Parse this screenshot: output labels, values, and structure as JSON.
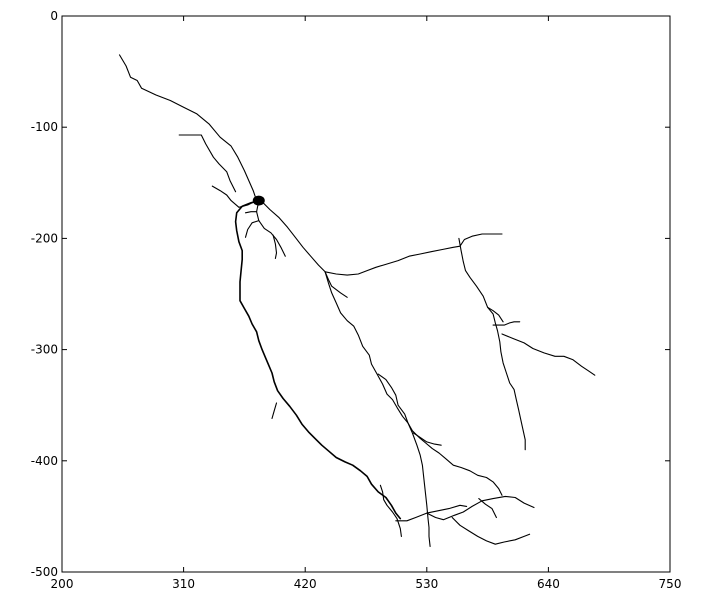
{
  "chart_data": {
    "type": "line",
    "title": "",
    "xlabel": "",
    "ylabel": "",
    "xlim": [
      200,
      750
    ],
    "ylim": [
      -500,
      0
    ],
    "xticks": [
      200,
      310,
      420,
      530,
      640,
      750
    ],
    "yticks": [
      0,
      -100,
      -200,
      -300,
      -400,
      -500
    ],
    "grid": false,
    "legend": "none",
    "soma": {
      "x": 378,
      "y": -166
    },
    "series": [
      {
        "points": [
          [
            252,
            -35
          ],
          [
            258,
            -45
          ],
          [
            262,
            -55
          ],
          [
            268,
            -58
          ],
          [
            272,
            -65
          ],
          [
            285,
            -71
          ],
          [
            298,
            -76
          ],
          [
            310,
            -82
          ],
          [
            322,
            -88
          ],
          [
            333,
            -97
          ],
          [
            343,
            -109
          ],
          [
            353,
            -117
          ],
          [
            359,
            -127
          ],
          [
            365,
            -139
          ],
          [
            369,
            -148
          ],
          [
            373,
            -157
          ],
          [
            376,
            -166
          ]
        ]
      },
      {
        "points": [
          [
            306,
            -107
          ],
          [
            316,
            -107
          ],
          [
            326,
            -107
          ],
          [
            330,
            -115
          ],
          [
            337,
            -127
          ],
          [
            342,
            -133
          ],
          [
            349,
            -140
          ],
          [
            352,
            -148
          ],
          [
            357,
            -158
          ]
        ]
      },
      {
        "points": [
          [
            336,
            -153
          ],
          [
            343,
            -157
          ],
          [
            349,
            -161
          ],
          [
            353,
            -166
          ],
          [
            360,
            -172
          ],
          [
            368,
            -170
          ],
          [
            376,
            -166
          ]
        ]
      },
      {
        "points": [
          [
            376,
            -166
          ],
          [
            381,
            -167
          ],
          [
            388,
            -174
          ],
          [
            396,
            -181
          ],
          [
            404,
            -190
          ],
          [
            411,
            -199
          ],
          [
            418,
            -208
          ],
          [
            425,
            -216
          ],
          [
            432,
            -224
          ],
          [
            438,
            -230
          ]
        ]
      },
      {
        "points": [
          [
            438,
            -230
          ],
          [
            441,
            -237
          ],
          [
            444,
            -243
          ],
          [
            452,
            -249
          ],
          [
            458,
            -253
          ]
        ]
      },
      {
        "points": [
          [
            438,
            -230
          ],
          [
            448,
            -232
          ],
          [
            458,
            -233
          ],
          [
            468,
            -232
          ],
          [
            476,
            -229
          ],
          [
            484,
            -226
          ],
          [
            494,
            -223
          ],
          [
            504,
            -220
          ],
          [
            514,
            -216
          ],
          [
            524,
            -214
          ],
          [
            534,
            -212
          ],
          [
            544,
            -210
          ],
          [
            554,
            -208
          ],
          [
            560,
            -207
          ],
          [
            564,
            -201
          ],
          [
            571,
            -198
          ],
          [
            580,
            -196
          ],
          [
            588,
            -196
          ],
          [
            594,
            -196
          ],
          [
            598,
            -196
          ]
        ]
      },
      {
        "points": [
          [
            559,
            -200
          ],
          [
            561,
            -211
          ],
          [
            563,
            -221
          ],
          [
            565,
            -229
          ],
          [
            569,
            -235
          ],
          [
            575,
            -243
          ],
          [
            581,
            -252
          ],
          [
            585,
            -262
          ],
          [
            590,
            -265
          ],
          [
            595,
            -269
          ],
          [
            599,
            -275
          ]
        ]
      },
      {
        "points": [
          [
            585,
            -262
          ],
          [
            590,
            -268
          ],
          [
            592,
            -276
          ],
          [
            594,
            -283
          ],
          [
            596,
            -293
          ],
          [
            597,
            -302
          ],
          [
            599,
            -312
          ],
          [
            602,
            -321
          ],
          [
            605,
            -330
          ],
          [
            609,
            -336
          ],
          [
            611,
            -345
          ],
          [
            613,
            -354
          ],
          [
            615,
            -363
          ],
          [
            617,
            -372
          ],
          [
            619,
            -381
          ],
          [
            619,
            -390
          ]
        ]
      },
      {
        "points": [
          [
            590,
            -278
          ],
          [
            600,
            -278
          ],
          [
            605,
            -276
          ],
          [
            609,
            -275
          ],
          [
            614,
            -275
          ]
        ]
      },
      {
        "points": [
          [
            598,
            -286
          ],
          [
            608,
            -290
          ],
          [
            618,
            -294
          ],
          [
            626,
            -299
          ],
          [
            636,
            -303
          ],
          [
            646,
            -306
          ],
          [
            654,
            -306
          ],
          [
            662,
            -309
          ],
          [
            670,
            -315
          ],
          [
            676,
            -319
          ],
          [
            682,
            -323
          ]
        ]
      },
      {
        "points": [
          [
            438,
            -230
          ],
          [
            441,
            -240
          ],
          [
            444,
            -249
          ],
          [
            448,
            -258
          ],
          [
            452,
            -267
          ],
          [
            458,
            -274
          ],
          [
            464,
            -279
          ],
          [
            468,
            -287
          ],
          [
            472,
            -297
          ],
          [
            478,
            -305
          ],
          [
            480,
            -313
          ],
          [
            485,
            -322
          ],
          [
            490,
            -331
          ],
          [
            494,
            -340
          ],
          [
            499,
            -345
          ],
          [
            503,
            -352
          ],
          [
            508,
            -360
          ],
          [
            513,
            -366
          ],
          [
            517,
            -373
          ],
          [
            523,
            -379
          ],
          [
            529,
            -384
          ],
          [
            535,
            -389
          ],
          [
            541,
            -393
          ],
          [
            547,
            -398
          ],
          [
            554,
            -404
          ],
          [
            561,
            -406
          ],
          [
            569,
            -409
          ],
          [
            576,
            -413
          ],
          [
            584,
            -415
          ],
          [
            590,
            -419
          ],
          [
            595,
            -425
          ],
          [
            598,
            -431
          ]
        ]
      },
      {
        "points": [
          [
            518,
            -375
          ],
          [
            524,
            -379
          ],
          [
            530,
            -383
          ],
          [
            537,
            -385
          ],
          [
            543,
            -386
          ]
        ]
      },
      {
        "points": [
          [
            378,
            -166
          ],
          [
            371,
            -168
          ],
          [
            363,
            -171
          ],
          [
            358,
            -177
          ],
          [
            357,
            -185
          ],
          [
            358,
            -193
          ],
          [
            360,
            -203
          ],
          [
            363,
            -211
          ],
          [
            363,
            -219
          ],
          [
            362,
            -229
          ],
          [
            361,
            -239
          ],
          [
            361,
            -249
          ],
          [
            361,
            -256
          ],
          [
            365,
            -263
          ],
          [
            369,
            -270
          ],
          [
            372,
            -277
          ],
          [
            376,
            -284
          ],
          [
            378,
            -292
          ],
          [
            381,
            -300
          ],
          [
            384,
            -307
          ],
          [
            387,
            -314
          ],
          [
            390,
            -321
          ],
          [
            392,
            -329
          ],
          [
            395,
            -337
          ],
          [
            400,
            -344
          ],
          [
            406,
            -351
          ],
          [
            412,
            -359
          ],
          [
            417,
            -367
          ],
          [
            423,
            -374
          ],
          [
            429,
            -380
          ],
          [
            435,
            -386
          ],
          [
            441,
            -391
          ],
          [
            448,
            -397
          ],
          [
            456,
            -401
          ],
          [
            463,
            -404
          ],
          [
            470,
            -409
          ],
          [
            476,
            -414
          ],
          [
            480,
            -421
          ],
          [
            486,
            -428
          ],
          [
            493,
            -433
          ],
          [
            498,
            -440
          ],
          [
            502,
            -447
          ],
          [
            506,
            -452
          ]
        ]
      },
      {
        "points": [
          [
            394,
            -348
          ],
          [
            392,
            -355
          ],
          [
            390,
            -362
          ]
        ]
      },
      {
        "points": [
          [
            488,
            -422
          ],
          [
            490,
            -428
          ],
          [
            491,
            -435
          ],
          [
            494,
            -440
          ],
          [
            499,
            -446
          ],
          [
            503,
            -452
          ],
          [
            506,
            -461
          ],
          [
            507,
            -468
          ]
        ]
      },
      {
        "points": [
          [
            502,
            -454
          ],
          [
            512,
            -454
          ],
          [
            520,
            -451
          ],
          [
            530,
            -447
          ],
          [
            540,
            -445
          ],
          [
            550,
            -443
          ],
          [
            560,
            -440
          ],
          [
            566,
            -441
          ]
        ]
      },
      {
        "points": [
          [
            486,
            -322
          ],
          [
            493,
            -327
          ],
          [
            498,
            -334
          ],
          [
            502,
            -341
          ],
          [
            504,
            -350
          ],
          [
            510,
            -358
          ],
          [
            513,
            -366
          ],
          [
            517,
            -375
          ],
          [
            521,
            -386
          ],
          [
            524,
            -395
          ],
          [
            526,
            -404
          ],
          [
            527,
            -413
          ],
          [
            528,
            -422
          ],
          [
            529,
            -431
          ],
          [
            530,
            -440
          ],
          [
            531,
            -451
          ],
          [
            532,
            -460
          ],
          [
            532,
            -468
          ],
          [
            533,
            -477
          ]
        ]
      },
      {
        "points": [
          [
            530,
            -447
          ],
          [
            538,
            -451
          ],
          [
            545,
            -453
          ],
          [
            555,
            -449
          ],
          [
            563,
            -446
          ],
          [
            571,
            -441
          ],
          [
            580,
            -436
          ],
          [
            590,
            -434
          ],
          [
            601,
            -432
          ],
          [
            610,
            -433
          ],
          [
            618,
            -438
          ],
          [
            627,
            -442
          ]
        ]
      },
      {
        "points": [
          [
            577,
            -434
          ],
          [
            583,
            -439
          ],
          [
            589,
            -443
          ],
          [
            593,
            -451
          ]
        ]
      },
      {
        "points": [
          [
            553,
            -451
          ],
          [
            560,
            -458
          ],
          [
            568,
            -463
          ],
          [
            576,
            -468
          ],
          [
            584,
            -472
          ],
          [
            592,
            -475
          ],
          [
            600,
            -473
          ],
          [
            610,
            -471
          ],
          [
            618,
            -468
          ],
          [
            623,
            -466
          ]
        ]
      },
      {
        "points": [
          [
            378,
            -166
          ],
          [
            376,
            -176
          ],
          [
            378,
            -184
          ],
          [
            383,
            -191
          ],
          [
            389,
            -195
          ],
          [
            394,
            -201
          ],
          [
            398,
            -208
          ],
          [
            402,
            -216
          ]
        ]
      },
      {
        "points": [
          [
            376,
            -176
          ],
          [
            371,
            -176
          ],
          [
            366,
            -177
          ]
        ]
      },
      {
        "points": [
          [
            378,
            -184
          ],
          [
            372,
            -186
          ],
          [
            368,
            -192
          ],
          [
            366,
            -199
          ]
        ]
      },
      {
        "points": [
          [
            391,
            -197
          ],
          [
            393,
            -205
          ],
          [
            394,
            -213
          ],
          [
            393,
            -218
          ]
        ]
      }
    ]
  }
}
